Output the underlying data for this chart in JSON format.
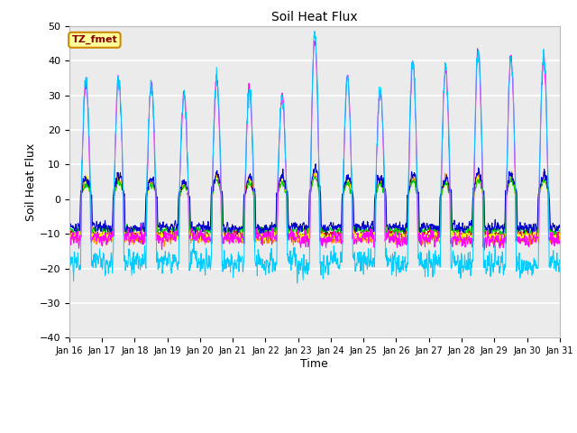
{
  "title": "Soil Heat Flux",
  "xlabel": "Time",
  "ylabel": "Soil Heat Flux",
  "ylim": [
    -40,
    50
  ],
  "background_color": "#ffffff",
  "plot_bg_color": "#ebebeb",
  "series_colors": {
    "SHF1": "#cc0000",
    "SHF2": "#ff8800",
    "SHF3": "#ffff00",
    "SHF4": "#00cc00",
    "SHF5": "#0000cc",
    "SHF_1": "#ff00ff",
    "SHF_2": "#00ccff"
  },
  "legend_label": "TZ_fmet",
  "legend_fg": "#880000",
  "legend_bg": "#ffff99",
  "legend_border": "#cc8800",
  "x_tick_labels": [
    "Jan 16",
    "Jan 17",
    "Jan 18",
    "Jan 19",
    "Jan 20",
    "Jan 21",
    "Jan 22",
    "Jan 23",
    "Jan 24",
    "Jan 25",
    "Jan 26",
    "Jan 27",
    "Jan 28",
    "Jan 29",
    "Jan 30",
    "Jan 31"
  ],
  "n_days": 15,
  "samples_per_day": 144,
  "yticks": [
    -40,
    -30,
    -20,
    -10,
    0,
    10,
    20,
    30,
    40,
    50
  ],
  "day_peak_amplitudes_large": [
    33,
    35,
    33,
    30,
    35,
    32,
    30,
    47,
    35,
    31,
    40,
    38,
    43,
    41,
    41
  ],
  "day_peak_amplitudes_small": [
    5,
    6,
    5,
    4,
    6,
    5,
    5,
    7,
    5,
    5,
    6,
    5,
    6,
    6,
    6
  ]
}
